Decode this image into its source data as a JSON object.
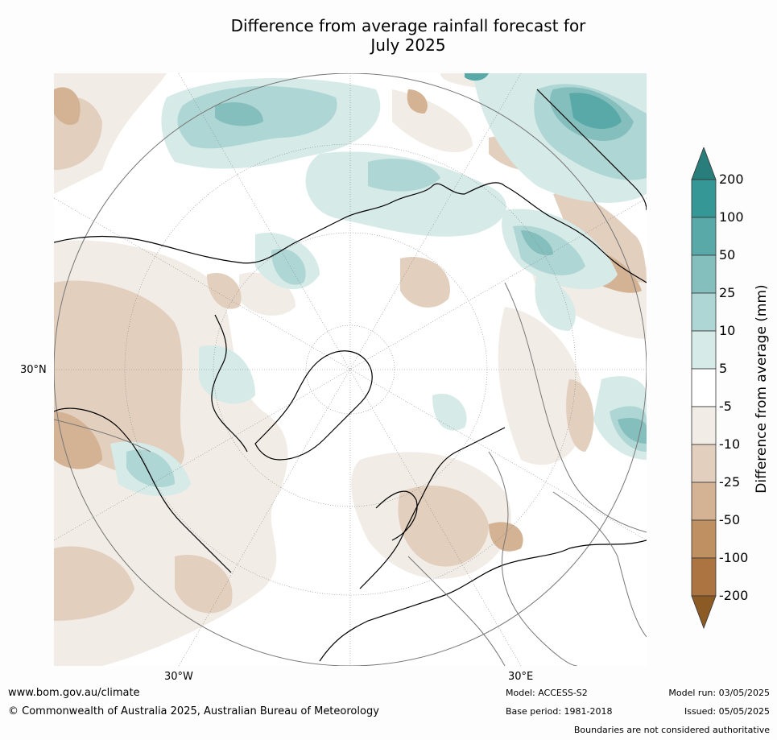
{
  "title_line1": "Difference from average rainfall forecast for",
  "title_line2": "July 2025",
  "map": {
    "projection": "north polar stereographic",
    "lat_label": "30°N",
    "lon_labels": [
      "30°W",
      "30°E"
    ]
  },
  "legend": {
    "label": "Difference from average (mm)",
    "ticks": [
      "200",
      "100",
      "50",
      "25",
      "10",
      "5",
      "-5",
      "-10",
      "-25",
      "-50",
      "-100",
      "-200"
    ],
    "colors": [
      "#297d7b",
      "#369896",
      "#59a9a8",
      "#84bfbe",
      "#aed6d4",
      "#d6eae8",
      "#ffffff",
      "#f2ece6",
      "#e2cfbe",
      "#d3b393",
      "#bf9062",
      "#ab7440",
      "#8c5a24"
    ]
  },
  "footer": {
    "website": "www.bom.gov.au/climate",
    "copyright": "© Commonwealth of Australia 2025, Australian Bureau of Meteorology",
    "model": "Model: ACCESS-S2",
    "base_period": "Base period: 1981-2018",
    "model_run": "Model run: 03/05/2025",
    "issued": "Issued: 05/05/2025",
    "boundaries": "Boundaries are not considered authoritative"
  }
}
